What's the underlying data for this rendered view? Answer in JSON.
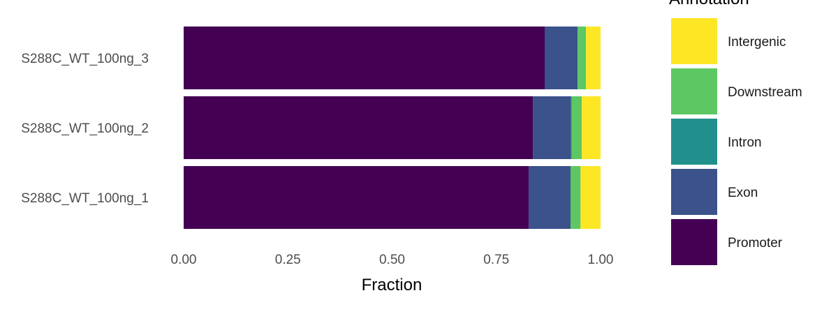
{
  "chart_data": {
    "type": "bar",
    "orientation": "horizontal",
    "stacked": true,
    "categories": [
      "S288C_WT_100ng_3",
      "S288C_WT_100ng_2",
      "S288C_WT_100ng_1"
    ],
    "series": [
      {
        "name": "Promoter",
        "color": "#440154",
        "values": [
          0.866,
          0.838,
          0.828
        ]
      },
      {
        "name": "Exon",
        "color": "#3B528B",
        "values": [
          0.079,
          0.091,
          0.1
        ]
      },
      {
        "name": "Intron",
        "color": "#21908C",
        "values": [
          0.0,
          0.002,
          0.0
        ]
      },
      {
        "name": "Downstream",
        "color": "#5DC863",
        "values": [
          0.02,
          0.024,
          0.024
        ]
      },
      {
        "name": "Intergenic",
        "color": "#FDE725",
        "values": [
          0.035,
          0.045,
          0.048
        ]
      }
    ],
    "xlabel": "Fraction",
    "ylabel": "",
    "xlim": [
      0,
      1
    ],
    "xticks": [
      "0.00",
      "0.25",
      "0.50",
      "0.75",
      "1.00"
    ],
    "grid": false,
    "legend": {
      "title": "Annotation",
      "placement": "right",
      "entries": [
        "Intergenic",
        "Downstream",
        "Intron",
        "Exon",
        "Promoter"
      ]
    }
  }
}
